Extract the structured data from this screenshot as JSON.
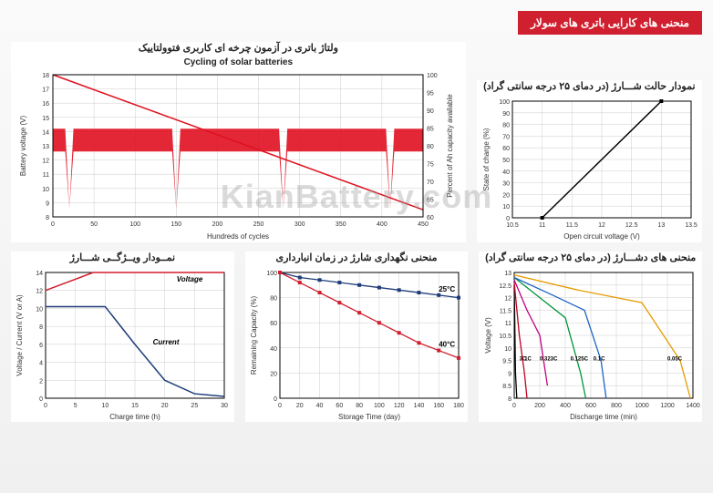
{
  "header": {
    "title": "منحنی های کارایی باتری های سولار"
  },
  "watermark": "KianBattery.com",
  "cycling": {
    "farsi_title": "ولتاژ باتری در آزمون چرخه ای کاربری فتوولتاییک",
    "eng_title": "Cycling of solar batteries",
    "ylabel_left": "Battery voltage (V)",
    "ylabel_right": "Percent of Ah capacity available",
    "xlabel": "Hundreds of cycles",
    "y_left_ticks": [
      8,
      9,
      10,
      11,
      12,
      13,
      14,
      15,
      16,
      17,
      18
    ],
    "y_right_ticks": [
      60,
      65,
      70,
      75,
      80,
      85,
      90,
      95,
      100
    ],
    "x_ticks": [
      0,
      50,
      100,
      150,
      200,
      250,
      300,
      350,
      400,
      450
    ],
    "capacity_line": [
      [
        0,
        100
      ],
      [
        450,
        62
      ]
    ],
    "voltage_band_top": 14.2,
    "voltage_band_bot": 12.6,
    "voltage_dips_x": [
      20,
      150,
      280,
      410
    ],
    "voltage_dip_y": 8.5,
    "colors": {
      "red": "#e01020",
      "grid": "#d0d0d0",
      "bg": "#ffffff"
    }
  },
  "soc": {
    "farsi_title": "نمودار حالت شـــارژ (در دمای ۲۵ درجه سانتی گراد)",
    "ylabel": "State of charge (%)",
    "xlabel": "Open circuit voltage (V)",
    "y_ticks": [
      0,
      10,
      20,
      30,
      40,
      50,
      60,
      70,
      80,
      90,
      100
    ],
    "x_ticks": [
      10.5,
      11,
      11.5,
      12,
      12.5,
      13,
      13.5
    ],
    "line": [
      [
        11.0,
        0
      ],
      [
        13.0,
        100
      ]
    ]
  },
  "discharge": {
    "farsi_title": "منحنی های دشـــارژ (در دمای ۲۵ درجه سانتی گراد)",
    "ylabel": "Voltage (V)",
    "xlabel": "Discharge time (min)",
    "y_ticks": [
      8,
      8.5,
      9,
      9.5,
      10,
      10.5,
      11,
      11.5,
      12,
      12.5,
      13
    ],
    "x_ticks": [
      0,
      200,
      400,
      600,
      800,
      1000,
      1200,
      1400
    ],
    "curves": [
      {
        "name": "3C",
        "color": "#000000",
        "label_x": 40,
        "pts": [
          [
            0,
            12.5
          ],
          [
            10,
            9.0
          ],
          [
            20,
            8.0
          ]
        ]
      },
      {
        "name": "1C",
        "color": "#c00020",
        "label_x": 80,
        "pts": [
          [
            0,
            12.6
          ],
          [
            40,
            10.5
          ],
          [
            80,
            9.0
          ],
          [
            100,
            8.0
          ]
        ]
      },
      {
        "name": "0.323C",
        "color": "#c00080",
        "label_x": 200,
        "pts": [
          [
            0,
            12.7
          ],
          [
            100,
            11.5
          ],
          [
            200,
            10.5
          ],
          [
            260,
            8.5
          ]
        ]
      },
      {
        "name": "0.125C",
        "color": "#00963c",
        "label_x": 440,
        "pts": [
          [
            0,
            12.8
          ],
          [
            200,
            12.0
          ],
          [
            400,
            11.2
          ],
          [
            520,
            9.0
          ],
          [
            560,
            8.0
          ]
        ]
      },
      {
        "name": "0.1C",
        "color": "#1e64c8",
        "label_x": 620,
        "pts": [
          [
            0,
            12.8
          ],
          [
            300,
            12.1
          ],
          [
            550,
            11.5
          ],
          [
            680,
            9.5
          ],
          [
            720,
            8.0
          ]
        ]
      },
      {
        "name": "0.05C",
        "color": "#e69b00",
        "label_x": 1200,
        "pts": [
          [
            0,
            12.9
          ],
          [
            500,
            12.3
          ],
          [
            1000,
            11.8
          ],
          [
            1300,
            9.5
          ],
          [
            1380,
            8.0
          ]
        ]
      }
    ]
  },
  "storage": {
    "farsi_title": "منحنی نگهداری شارژ در زمان انبارداری",
    "ylabel": "Remaining Capacity (%)",
    "xlabel": "Storage Time (day)",
    "y_ticks": [
      0,
      20,
      40,
      60,
      80,
      100
    ],
    "x_ticks": [
      0,
      20,
      40,
      60,
      80,
      100,
      120,
      140,
      160,
      180
    ],
    "series": [
      {
        "name": "25°C",
        "color": "#1e3c78",
        "pts": [
          [
            0,
            100
          ],
          [
            20,
            96
          ],
          [
            40,
            94
          ],
          [
            60,
            92
          ],
          [
            80,
            90
          ],
          [
            100,
            88
          ],
          [
            120,
            86
          ],
          [
            140,
            84
          ],
          [
            160,
            82
          ],
          [
            180,
            80
          ]
        ]
      },
      {
        "name": "40°C",
        "color": "#d01f2e",
        "pts": [
          [
            0,
            100
          ],
          [
            20,
            92
          ],
          [
            40,
            84
          ],
          [
            60,
            76
          ],
          [
            80,
            68
          ],
          [
            100,
            60
          ],
          [
            120,
            52
          ],
          [
            140,
            44
          ],
          [
            160,
            38
          ],
          [
            180,
            32
          ]
        ]
      }
    ]
  },
  "charge_profile": {
    "farsi_title": "نمــودار ویــژگــی شـــارژ",
    "ylabel": "Voltage / Current (V or A)",
    "xlabel": "Charge time (h)",
    "y_ticks": [
      0,
      2,
      4,
      6,
      8,
      10,
      12,
      14
    ],
    "x_ticks": [
      0,
      5,
      10,
      15,
      20,
      25,
      30
    ],
    "voltage": {
      "name": "Voltage",
      "color": "#d01f2e",
      "pts": [
        [
          0,
          12.0
        ],
        [
          8,
          14.0
        ],
        [
          30,
          14.0
        ]
      ]
    },
    "current": {
      "name": "Current",
      "color": "#1e3c78",
      "pts": [
        [
          0,
          10.2
        ],
        [
          10,
          10.2
        ],
        [
          15,
          6.0
        ],
        [
          20,
          2.0
        ],
        [
          25,
          0.5
        ],
        [
          30,
          0.2
        ]
      ]
    }
  }
}
